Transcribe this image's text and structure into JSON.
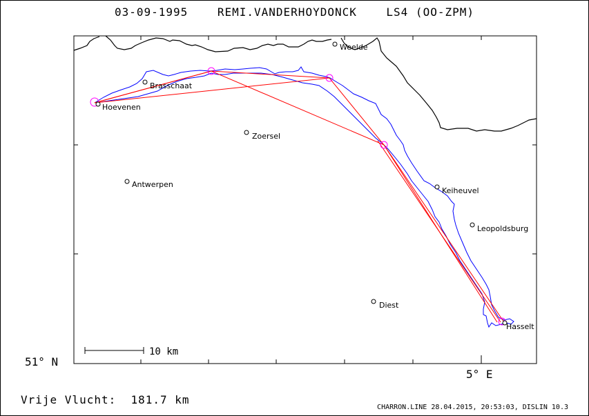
{
  "header": {
    "title": "03-09-1995    REMI.VANDERHOYDONCK    LS4 (OO-ZPM)"
  },
  "axes": {
    "lat_label": "51° N",
    "lon_label": "5° E"
  },
  "scale_bar": {
    "label": "10 km"
  },
  "footer": {
    "distance_label": "Vrije Vlucht:  181.7 km",
    "credit": "CHARRON.LINE 28.04.2015, 20:53:03, DISLIN 10.3"
  },
  "places": [
    {
      "name": "Weelde"
    },
    {
      "name": "Brasschaat"
    },
    {
      "name": "Hoevenen"
    },
    {
      "name": "Zoersel"
    },
    {
      "name": "Antwerpen"
    },
    {
      "name": "Keiheuvel"
    },
    {
      "name": "Leopoldsburg"
    },
    {
      "name": "Diest"
    },
    {
      "name": "Hasselt"
    }
  ],
  "colors": {
    "track": "#0000ff",
    "task": "#ff0000",
    "turnpoint": "#ff00ff",
    "border": "#000000"
  }
}
